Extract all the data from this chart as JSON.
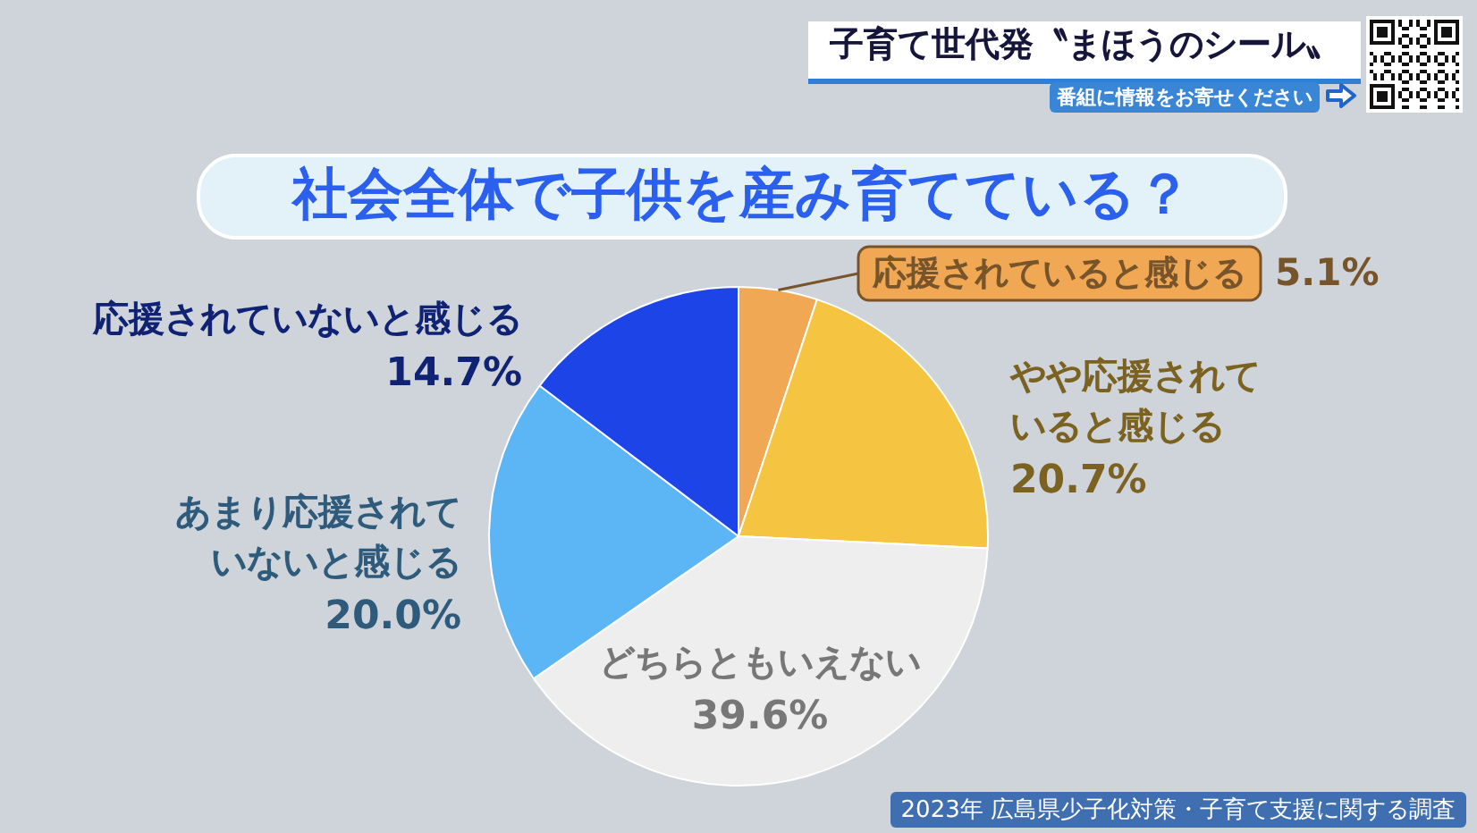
{
  "chart_data": {
    "type": "pie",
    "title": "社会全体で子供を産み育てている？",
    "subtitle": "子育て世代発〝まほうのシール〟",
    "categories": [
      "応援されていると感じる",
      "やや応援されていると感じる",
      "どちらともいえない",
      "あまり応援されていないと感じる",
      "応援されていないと感じる"
    ],
    "values": [
      5.1,
      20.7,
      39.6,
      20.0,
      14.7
    ],
    "colors": [
      "#f0a855",
      "#f5c440",
      "#eeeeee",
      "#5cb6f6",
      "#1d44e6"
    ],
    "value_labels": [
      "5.1%",
      "20.7%",
      "39.6%",
      "20.0%",
      "14.7%"
    ],
    "annotations": [
      "番組に情報をお寄せください",
      "2023年 広島県少子化対策・子育て支援に関する調査"
    ]
  }
}
